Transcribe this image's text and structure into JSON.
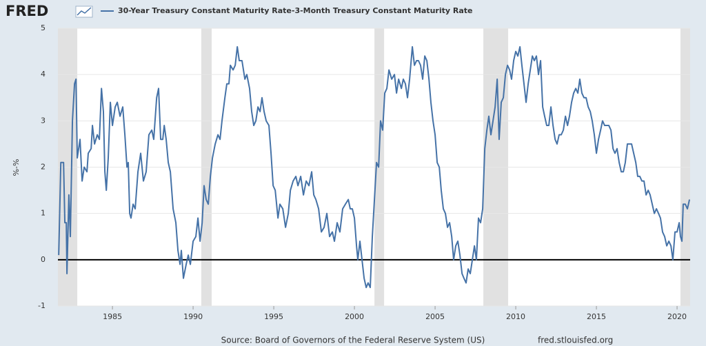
{
  "header": {
    "logo": "FRED"
  },
  "chart_data": {
    "type": "line",
    "ylabel": "%-%",
    "x": [
      1981.67,
      1981.8,
      1981.97,
      1982.05,
      1982.14,
      1982.18,
      1982.3,
      1982.39,
      1982.52,
      1982.65,
      1982.74,
      1982.82,
      1982.99,
      1983.12,
      1983.25,
      1983.42,
      1983.5,
      1983.68,
      1983.76,
      1983.89,
      1984.06,
      1984.19,
      1984.32,
      1984.44,
      1984.53,
      1984.62,
      1984.74,
      1984.87,
      1985.0,
      1985.17,
      1985.3,
      1985.47,
      1985.64,
      1985.77,
      1985.9,
      1985.98,
      1986.07,
      1986.15,
      1986.28,
      1986.41,
      1986.58,
      1986.75,
      1986.92,
      1987.09,
      1987.26,
      1987.44,
      1987.56,
      1987.74,
      1987.86,
      1987.99,
      1988.12,
      1988.21,
      1988.33,
      1988.46,
      1988.59,
      1988.76,
      1988.93,
      1989.06,
      1989.19,
      1989.27,
      1989.4,
      1989.57,
      1989.7,
      1989.83,
      1990.0,
      1990.17,
      1990.3,
      1990.43,
      1990.56,
      1990.68,
      1990.81,
      1990.94,
      1991.07,
      1991.2,
      1991.37,
      1991.54,
      1991.67,
      1991.79,
      1991.97,
      1992.09,
      1992.22,
      1992.31,
      1992.48,
      1992.61,
      1992.74,
      1992.86,
      1993.03,
      1993.21,
      1993.33,
      1993.5,
      1993.63,
      1993.76,
      1993.89,
      1994.02,
      1994.15,
      1994.27,
      1994.4,
      1994.53,
      1994.7,
      1994.83,
      1994.96,
      1995.09,
      1995.26,
      1995.38,
      1995.56,
      1995.73,
      1995.9,
      1996.03,
      1996.2,
      1996.37,
      1996.5,
      1996.67,
      1996.84,
      1997.01,
      1997.18,
      1997.35,
      1997.48,
      1997.61,
      1997.78,
      1997.95,
      1998.12,
      1998.29,
      1998.46,
      1998.63,
      1998.76,
      1998.93,
      1999.1,
      1999.27,
      1999.44,
      1999.62,
      1999.74,
      1999.87,
      2000.0,
      2000.13,
      2000.21,
      2000.34,
      2000.47,
      2000.6,
      2000.73,
      2000.85,
      2000.98,
      2001.11,
      2001.24,
      2001.37,
      2001.5,
      2001.62,
      2001.75,
      2001.88,
      2002.01,
      2002.14,
      2002.31,
      2002.48,
      2002.61,
      2002.74,
      2002.91,
      2003.03,
      2003.16,
      2003.29,
      2003.42,
      2003.59,
      2003.72,
      2003.85,
      2003.97,
      2004.1,
      2004.23,
      2004.36,
      2004.49,
      2004.62,
      2004.74,
      2004.87,
      2005.0,
      2005.13,
      2005.26,
      2005.38,
      2005.51,
      2005.64,
      2005.77,
      2005.9,
      2006.03,
      2006.15,
      2006.28,
      2006.41,
      2006.54,
      2006.67,
      2006.79,
      2006.92,
      2007.05,
      2007.18,
      2007.31,
      2007.44,
      2007.56,
      2007.69,
      2007.82,
      2007.95,
      2008.08,
      2008.21,
      2008.33,
      2008.46,
      2008.59,
      2008.72,
      2008.85,
      2008.97,
      2009.1,
      2009.23,
      2009.36,
      2009.49,
      2009.62,
      2009.74,
      2009.87,
      2010.0,
      2010.13,
      2010.26,
      2010.38,
      2010.51,
      2010.64,
      2010.77,
      2010.9,
      2011.03,
      2011.15,
      2011.28,
      2011.41,
      2011.54,
      2011.67,
      2011.79,
      2011.92,
      2012.05,
      2012.18,
      2012.31,
      2012.44,
      2012.56,
      2012.69,
      2012.82,
      2012.95,
      2013.08,
      2013.21,
      2013.33,
      2013.46,
      2013.59,
      2013.72,
      2013.85,
      2013.97,
      2014.1,
      2014.23,
      2014.36,
      2014.49,
      2014.62,
      2014.74,
      2014.87,
      2015.0,
      2015.13,
      2015.26,
      2015.38,
      2015.51,
      2015.64,
      2015.77,
      2015.9,
      2016.03,
      2016.15,
      2016.28,
      2016.41,
      2016.54,
      2016.67,
      2016.79,
      2016.92,
      2017.05,
      2017.18,
      2017.31,
      2017.44,
      2017.56,
      2017.69,
      2017.82,
      2017.95,
      2018.08,
      2018.21,
      2018.33,
      2018.46,
      2018.59,
      2018.72,
      2018.85,
      2018.97,
      2019.1,
      2019.23,
      2019.36,
      2019.49,
      2019.62,
      2019.74,
      2019.87,
      2020.0,
      2020.13,
      2020.21,
      2020.3,
      2020.38,
      2020.51,
      2020.64,
      2020.77
    ],
    "series": [
      {
        "name": "30-Year Treasury Constant Maturity Rate-3-Month Treasury Constant Maturity Rate",
        "color": "#4572a7",
        "values": [
          0.1,
          2.1,
          2.1,
          0.8,
          0.8,
          -0.3,
          1.4,
          0.5,
          3.0,
          3.8,
          3.9,
          2.2,
          2.6,
          1.7,
          2.0,
          1.9,
          2.3,
          2.4,
          2.9,
          2.5,
          2.7,
          2.6,
          3.7,
          3.2,
          1.9,
          1.5,
          2.2,
          3.4,
          2.9,
          3.3,
          3.4,
          3.1,
          3.3,
          2.7,
          2.0,
          2.1,
          1.0,
          0.9,
          1.2,
          1.1,
          1.9,
          2.3,
          1.7,
          1.9,
          2.7,
          2.8,
          2.6,
          3.5,
          3.7,
          2.6,
          2.6,
          2.9,
          2.6,
          2.1,
          1.9,
          1.1,
          0.8,
          0.2,
          -0.1,
          0.2,
          -0.4,
          -0.1,
          0.1,
          -0.1,
          0.4,
          0.5,
          0.9,
          0.4,
          0.8,
          1.6,
          1.3,
          1.2,
          1.8,
          2.2,
          2.5,
          2.7,
          2.6,
          3.0,
          3.5,
          3.8,
          3.8,
          4.2,
          4.1,
          4.2,
          4.6,
          4.3,
          4.3,
          3.9,
          4.0,
          3.7,
          3.2,
          2.9,
          3.0,
          3.3,
          3.2,
          3.5,
          3.2,
          3.0,
          2.9,
          2.3,
          1.6,
          1.5,
          0.9,
          1.2,
          1.1,
          0.7,
          1.0,
          1.5,
          1.7,
          1.8,
          1.6,
          1.8,
          1.4,
          1.7,
          1.6,
          1.9,
          1.4,
          1.3,
          1.1,
          0.6,
          0.7,
          1.0,
          0.5,
          0.6,
          0.4,
          0.8,
          0.6,
          1.1,
          1.2,
          1.3,
          1.1,
          1.1,
          0.9,
          0.3,
          0.0,
          0.4,
          0.0,
          -0.4,
          -0.6,
          -0.5,
          -0.6,
          0.5,
          1.3,
          2.1,
          2.0,
          3.0,
          2.8,
          3.6,
          3.7,
          4.1,
          3.9,
          4.0,
          3.6,
          3.9,
          3.7,
          3.9,
          3.8,
          3.5,
          3.9,
          4.6,
          4.2,
          4.3,
          4.3,
          4.2,
          3.9,
          4.4,
          4.3,
          3.9,
          3.4,
          3.0,
          2.7,
          2.1,
          2.0,
          1.5,
          1.1,
          1.0,
          0.7,
          0.8,
          0.5,
          0.0,
          0.3,
          0.4,
          0.1,
          -0.3,
          -0.4,
          -0.5,
          -0.2,
          -0.3,
          0.0,
          0.3,
          0.0,
          0.9,
          0.8,
          1.1,
          2.4,
          2.8,
          3.1,
          2.7,
          3.0,
          3.3,
          3.9,
          2.6,
          3.4,
          3.5,
          4.0,
          4.2,
          4.1,
          3.9,
          4.3,
          4.5,
          4.4,
          4.6,
          4.2,
          3.8,
          3.4,
          3.8,
          4.1,
          4.4,
          4.3,
          4.4,
          4.0,
          4.3,
          3.3,
          3.1,
          2.9,
          2.9,
          3.3,
          2.9,
          2.6,
          2.5,
          2.7,
          2.7,
          2.8,
          3.1,
          2.9,
          3.1,
          3.4,
          3.6,
          3.7,
          3.6,
          3.9,
          3.6,
          3.5,
          3.5,
          3.3,
          3.2,
          3.0,
          2.7,
          2.3,
          2.6,
          2.8,
          3.0,
          2.9,
          2.9,
          2.9,
          2.8,
          2.4,
          2.3,
          2.4,
          2.1,
          1.9,
          1.9,
          2.1,
          2.5,
          2.5,
          2.5,
          2.3,
          2.1,
          1.8,
          1.8,
          1.7,
          1.7,
          1.4,
          1.5,
          1.4,
          1.2,
          1.0,
          1.1,
          1.0,
          0.9,
          0.6,
          0.5,
          0.3,
          0.4,
          0.3,
          0.0,
          0.6,
          0.6,
          0.8,
          0.5,
          0.4,
          1.2,
          1.2,
          1.1,
          1.3
        ]
      }
    ],
    "xlim": [
      1981.62,
      2020.81
    ],
    "ylim": [
      -1,
      5
    ],
    "xticks": [
      1985,
      1990,
      1995,
      2000,
      2005,
      2010,
      2015,
      2020
    ],
    "yticks": [
      -1,
      0,
      1,
      2,
      3,
      4,
      5
    ],
    "grid": true,
    "zero_line": true,
    "shade_color": "#e1e1e1",
    "shaded_ranges": [
      [
        1981.62,
        1982.82
      ],
      [
        1990.51,
        1991.15
      ],
      [
        2001.24,
        2001.84
      ],
      [
        2007.99,
        2009.53
      ],
      [
        2020.21,
        2020.81
      ]
    ]
  },
  "footer": {
    "source": "Source: Board of Governors of the Federal Reserve System (US)",
    "url": "fred.stlouisfed.org"
  }
}
